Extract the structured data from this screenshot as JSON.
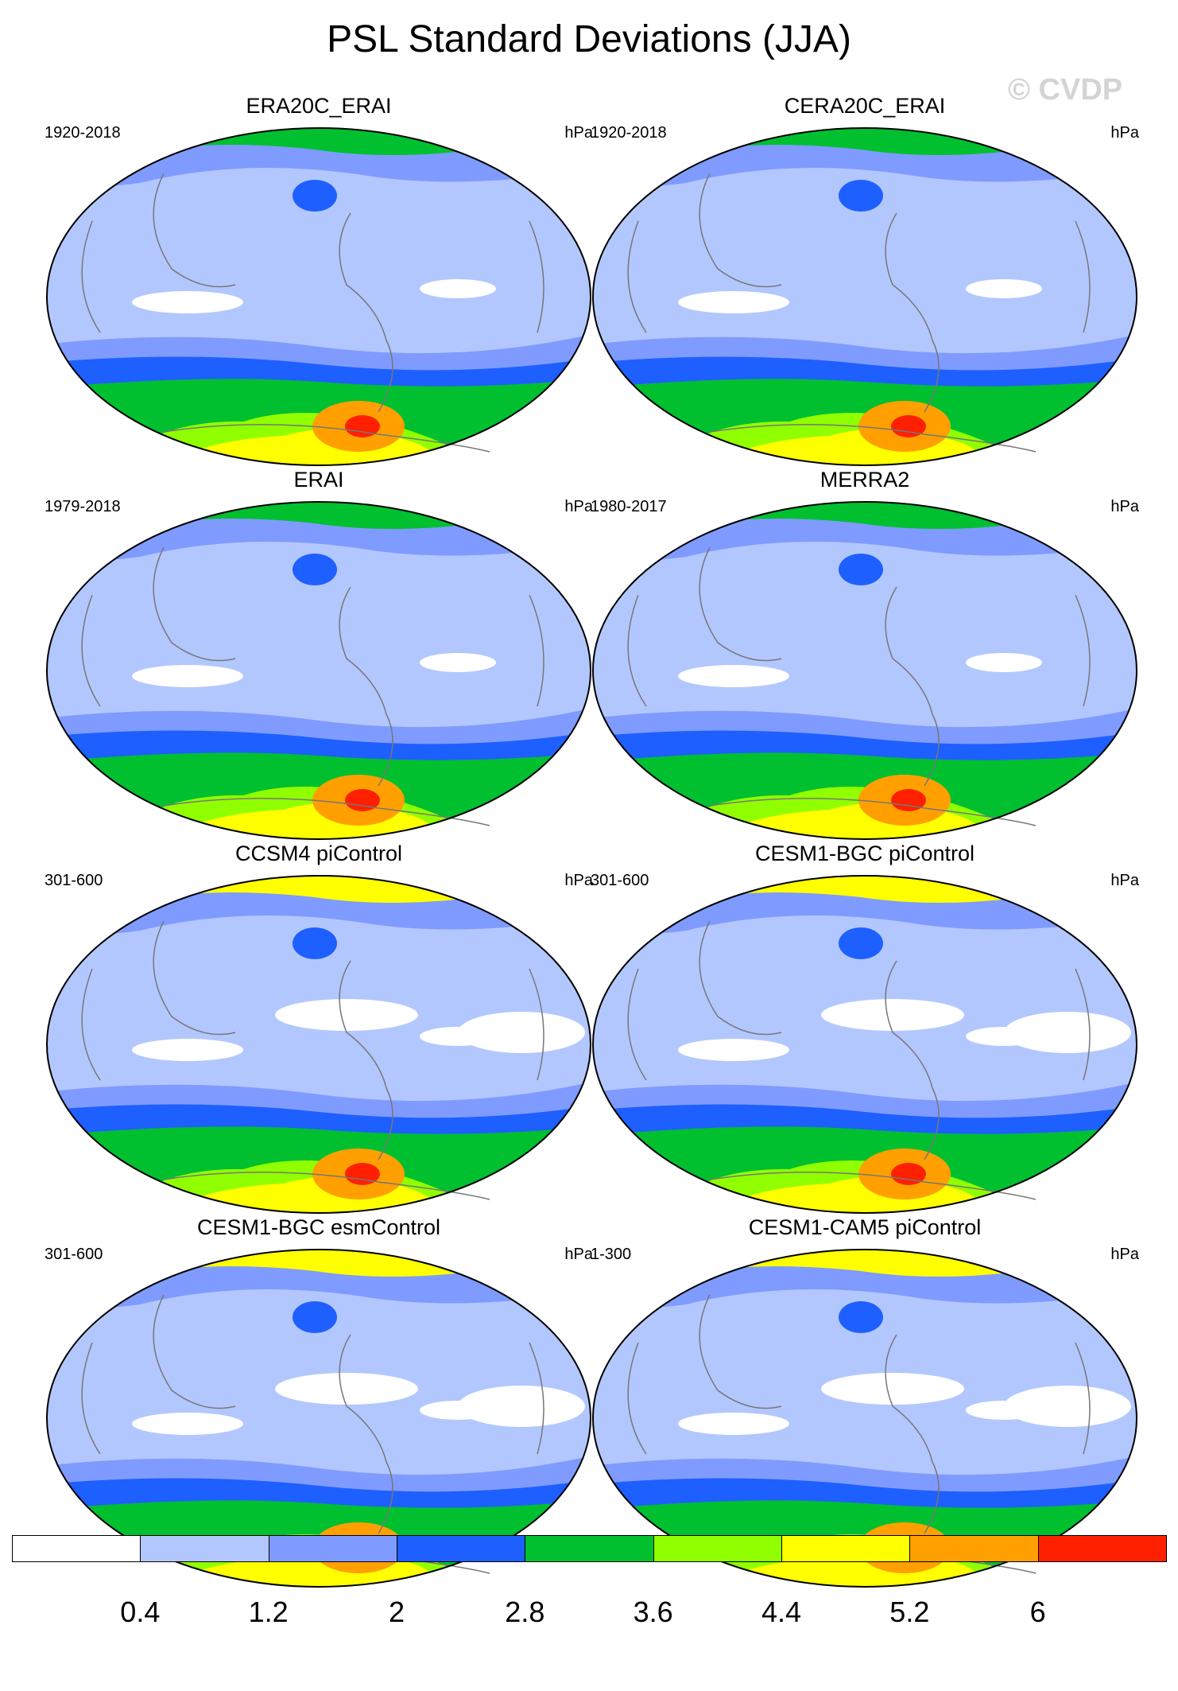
{
  "title": "PSL Standard Deviations (JJA)",
  "watermark": "© CVDP",
  "panels": [
    {
      "title": "ERA20C_ERAI",
      "period": "1920-2018",
      "units": "hPa",
      "max_level": 8
    },
    {
      "title": "CERA20C_ERAI",
      "period": "1920-2018",
      "units": "hPa",
      "max_level": 8
    },
    {
      "title": "ERAI",
      "period": "1979-2018",
      "units": "hPa",
      "max_level": 8
    },
    {
      "title": "MERRA2",
      "period": "1980-2017",
      "units": "hPa",
      "max_level": 8
    },
    {
      "title": "CCSM4 piControl",
      "period": "301-600",
      "units": "hPa",
      "max_level": 8
    },
    {
      "title": "CESM1-BGC piControl",
      "period": "301-600",
      "units": "hPa",
      "max_level": 8
    },
    {
      "title": "CESM1-BGC esmControl",
      "period": "301-600",
      "units": "hPa",
      "max_level": 8
    },
    {
      "title": "CESM1-CAM5 piControl",
      "period": "1-300",
      "units": "hPa",
      "max_level": 7
    }
  ],
  "colorbar": {
    "labels": [
      "0.4",
      "1.2",
      "2",
      "2.8",
      "3.6",
      "4.4",
      "5.2",
      "6"
    ],
    "colors": [
      "#ffffff",
      "#b3c7ff",
      "#7f9bff",
      "#1e5fff",
      "#00c030",
      "#90ff00",
      "#ffff00",
      "#ffa000",
      "#ff2000"
    ]
  }
}
